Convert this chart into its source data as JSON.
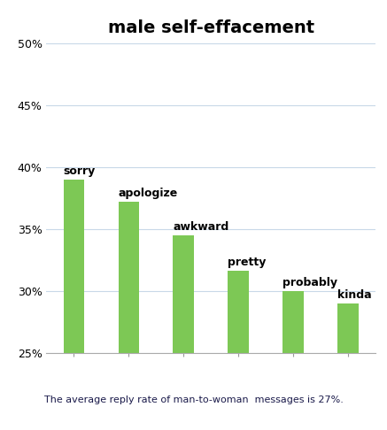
{
  "title": "male self-effacement",
  "categories": [
    "sorry",
    "apologize",
    "awkward",
    "pretty",
    "probably",
    "kinda"
  ],
  "values": [
    39.0,
    37.2,
    34.5,
    31.6,
    30.0,
    29.0
  ],
  "bar_color": "#7dc855",
  "ylim": [
    25,
    50
  ],
  "yticks": [
    25,
    30,
    35,
    40,
    45,
    50
  ],
  "ytick_labels": [
    "25%",
    "30%",
    "35%",
    "40%",
    "45%",
    "50%"
  ],
  "footer": "The average reply rate of man-to-woman  messages is 27%.",
  "title_fontsize": 14,
  "label_fontsize": 9,
  "tick_fontsize": 9,
  "footer_fontsize": 8,
  "background_color": "#ffffff",
  "grid_color": "#c8d8e8"
}
